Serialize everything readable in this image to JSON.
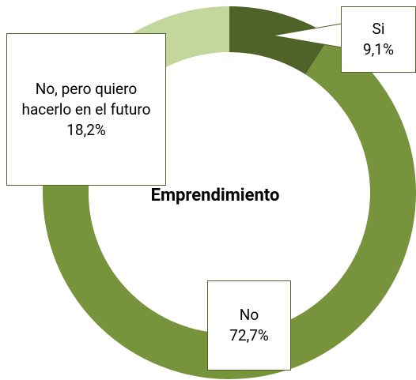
{
  "chart_data": {
    "type": "donut",
    "title": "Emprendimiento",
    "categories": [
      "Si",
      "No",
      "No, pero quiero hacerlo en el futuro"
    ],
    "values": [
      9.1,
      72.7,
      18.2
    ],
    "value_labels": [
      "9,1%",
      "72,7%",
      "18,2%"
    ],
    "colors": [
      "#4f6228",
      "#77933c",
      "#c3d69b"
    ]
  }
}
